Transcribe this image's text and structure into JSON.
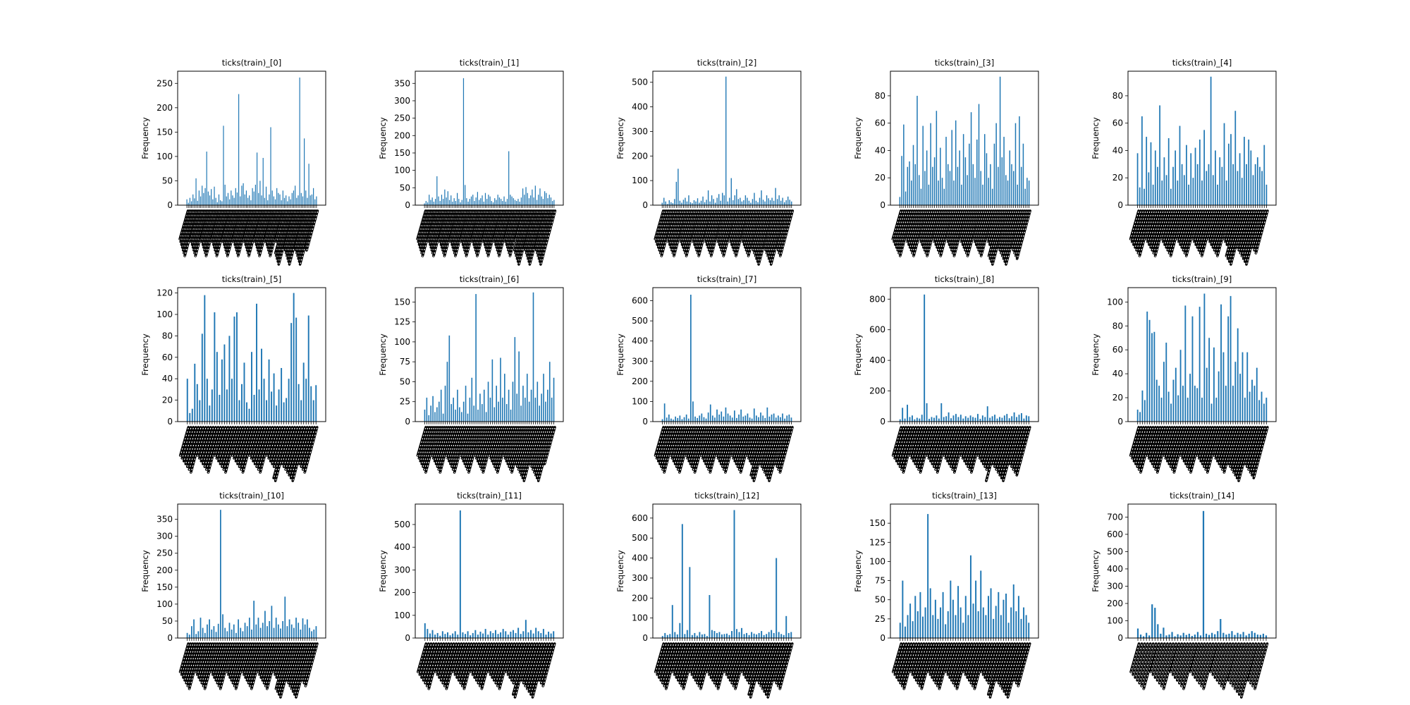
{
  "figure": {
    "background": "#ffffff",
    "bar_color": "#1f77b4"
  },
  "chart_data": [
    {
      "type": "bar",
      "title": "ticks(train)_[0]",
      "ylabel": "Frequency",
      "ylim": [
        0,
        275
      ],
      "yticks": [
        0,
        50,
        100,
        150,
        200,
        250
      ],
      "values": [
        12,
        5,
        15,
        8,
        22,
        14,
        55,
        9,
        30,
        18,
        40,
        25,
        35,
        110,
        28,
        20,
        33,
        12,
        38,
        15,
        6,
        22,
        10,
        8,
        163,
        42,
        18,
        25,
        12,
        30,
        20,
        15,
        35,
        26,
        228,
        18,
        40,
        45,
        22,
        30,
        15,
        20,
        10,
        35,
        28,
        42,
        108,
        25,
        50,
        20,
        97,
        15,
        38,
        10,
        22,
        160,
        30,
        18,
        12,
        35,
        25,
        22,
        10,
        30,
        15,
        20,
        8,
        18,
        12,
        25,
        30,
        40,
        15,
        20,
        262,
        25,
        18,
        137,
        30,
        15,
        85,
        20,
        22,
        35,
        12,
        18
      ]
    },
    {
      "type": "bar",
      "title": "ticks(train)_[1]",
      "ylabel": "Frequency",
      "ylim": [
        0,
        385
      ],
      "yticks": [
        0,
        50,
        100,
        150,
        200,
        250,
        300,
        350
      ],
      "values": [
        5,
        12,
        8,
        30,
        15,
        22,
        10,
        18,
        83,
        25,
        12,
        30,
        18,
        45,
        22,
        40,
        15,
        28,
        10,
        20,
        12,
        35,
        18,
        8,
        15,
        365,
        58,
        20,
        10,
        18,
        25,
        30,
        12,
        22,
        38,
        15,
        20,
        28,
        10,
        35,
        18,
        30,
        25,
        12,
        8,
        20,
        15,
        30,
        22,
        18,
        12,
        25,
        10,
        18,
        155,
        30,
        25,
        20,
        15,
        12,
        18,
        10,
        22,
        48,
        30,
        52,
        35,
        20,
        28,
        45,
        22,
        56,
        15,
        30,
        48,
        25,
        18,
        40,
        35,
        20,
        30,
        22,
        12,
        15
      ]
    },
    {
      "type": "bar",
      "title": "ticks(train)_[2]",
      "ylabel": "Frequency",
      "ylim": [
        0,
        545
      ],
      "yticks": [
        0,
        100,
        200,
        300,
        400,
        500
      ],
      "values": [
        10,
        30,
        15,
        5,
        20,
        12,
        8,
        25,
        95,
        148,
        18,
        10,
        22,
        30,
        15,
        40,
        12,
        8,
        20,
        15,
        28,
        10,
        18,
        35,
        12,
        22,
        60,
        15,
        40,
        25,
        10,
        30,
        45,
        18,
        50,
        40,
        523,
        15,
        30,
        110,
        20,
        40,
        65,
        25,
        30,
        15,
        20,
        40,
        30,
        18,
        10,
        25,
        50,
        18,
        12,
        30,
        60,
        22,
        15,
        40,
        28,
        20,
        30,
        18,
        70,
        25,
        40,
        18,
        30,
        12,
        20,
        35,
        22,
        15
      ]
    },
    {
      "type": "bar",
      "title": "ticks(train)_[3]",
      "ylabel": "Frequency",
      "ylim": [
        0,
        98
      ],
      "yticks": [
        0,
        20,
        40,
        60,
        80
      ],
      "values": [
        6,
        36,
        59,
        10,
        28,
        32,
        18,
        44,
        30,
        80,
        22,
        12,
        58,
        25,
        40,
        15,
        60,
        28,
        35,
        69,
        18,
        42,
        20,
        12,
        50,
        30,
        25,
        55,
        18,
        62,
        28,
        40,
        15,
        52,
        35,
        22,
        45,
        68,
        30,
        20,
        48,
        74,
        25,
        15,
        52,
        38,
        20,
        30,
        12,
        45,
        60,
        28,
        94,
        35,
        50,
        22,
        18,
        40,
        30,
        25,
        60,
        15,
        65,
        28,
        45,
        12,
        20,
        18
      ]
    },
    {
      "type": "bar",
      "title": "ticks(train)_[4]",
      "ylabel": "Frequency",
      "ylim": [
        0,
        98
      ],
      "yticks": [
        0,
        20,
        40,
        60,
        80
      ],
      "values": [
        38,
        13,
        65,
        12,
        50,
        24,
        46,
        15,
        40,
        28,
        73,
        18,
        35,
        22,
        49,
        12,
        28,
        40,
        18,
        58,
        30,
        22,
        44,
        15,
        38,
        20,
        42,
        30,
        48,
        18,
        55,
        25,
        30,
        94,
        22,
        40,
        15,
        35,
        28,
        60,
        18,
        45,
        52,
        30,
        69,
        25,
        38,
        20,
        50,
        30,
        48,
        40,
        22,
        30,
        35,
        28,
        25,
        44,
        15
      ]
    },
    {
      "type": "bar",
      "title": "ticks(train)_[5]",
      "ylabel": "Frequency",
      "ylim": [
        0,
        125
      ],
      "yticks": [
        0,
        20,
        40,
        60,
        80,
        100,
        120
      ],
      "values": [
        40,
        8,
        12,
        54,
        35,
        20,
        82,
        118,
        40,
        15,
        30,
        102,
        65,
        25,
        58,
        72,
        30,
        80,
        40,
        98,
        102,
        20,
        35,
        55,
        18,
        12,
        65,
        25,
        110,
        30,
        68,
        40,
        20,
        58,
        28,
        45,
        15,
        30,
        50,
        18,
        22,
        40,
        92,
        120,
        97,
        35,
        20,
        55,
        40,
        99,
        33,
        20,
        34
      ]
    },
    {
      "type": "bar",
      "title": "ticks(train)_[6]",
      "ylabel": "Frequency",
      "ylim": [
        0,
        168
      ],
      "yticks": [
        0,
        25,
        50,
        75,
        100,
        125,
        150
      ],
      "values": [
        15,
        30,
        8,
        20,
        32,
        12,
        18,
        25,
        40,
        10,
        45,
        75,
        108,
        22,
        30,
        15,
        40,
        18,
        12,
        25,
        45,
        10,
        30,
        55,
        20,
        160,
        15,
        35,
        22,
        40,
        12,
        50,
        30,
        78,
        18,
        45,
        25,
        80,
        30,
        60,
        22,
        40,
        15,
        50,
        106,
        35,
        88,
        20,
        45,
        30,
        60,
        25,
        40,
        162,
        30,
        50,
        20,
        35,
        60,
        25,
        40,
        75,
        30,
        55
      ]
    },
    {
      "type": "bar",
      "title": "ticks(train)_[7]",
      "ylabel": "Frequency",
      "ylim": [
        0,
        665
      ],
      "yticks": [
        0,
        100,
        200,
        300,
        400,
        500,
        600
      ],
      "values": [
        12,
        90,
        20,
        35,
        15,
        10,
        25,
        18,
        30,
        12,
        22,
        35,
        15,
        630,
        100,
        25,
        18,
        30,
        40,
        22,
        15,
        45,
        85,
        30,
        20,
        60,
        35,
        50,
        25,
        70,
        40,
        30,
        20,
        55,
        18,
        35,
        60,
        25,
        30,
        40,
        20,
        15,
        65,
        30,
        22,
        45,
        30,
        18,
        70,
        25,
        35,
        40,
        20,
        30,
        22,
        40,
        15,
        30,
        35,
        20
      ]
    },
    {
      "type": "bar",
      "title": "ticks(train)_[8]",
      "ylabel": "Frequency",
      "ylim": [
        0,
        875
      ],
      "yticks": [
        0,
        200,
        400,
        600,
        800
      ],
      "values": [
        15,
        90,
        20,
        110,
        30,
        40,
        15,
        25,
        20,
        45,
        830,
        120,
        18,
        30,
        25,
        40,
        20,
        120,
        30,
        35,
        60,
        22,
        40,
        50,
        30,
        45,
        20,
        35,
        25,
        40,
        30,
        25,
        50,
        18,
        40,
        30,
        100,
        25,
        35,
        45,
        20,
        30,
        25,
        40,
        50,
        22,
        35,
        60,
        30,
        45,
        55,
        20,
        40,
        35
      ]
    },
    {
      "type": "bar",
      "title": "ticks(train)_[9]",
      "ylabel": "Frequency",
      "ylim": [
        0,
        112
      ],
      "yticks": [
        0,
        20,
        40,
        60,
        80,
        100
      ],
      "values": [
        10,
        8,
        26,
        18,
        92,
        85,
        74,
        75,
        35,
        30,
        20,
        50,
        66,
        25,
        15,
        35,
        45,
        22,
        60,
        30,
        97,
        20,
        40,
        88,
        30,
        28,
        96,
        20,
        107,
        45,
        70,
        15,
        62,
        20,
        42,
        98,
        58,
        30,
        88,
        105,
        30,
        50,
        78,
        40,
        58,
        20,
        58,
        25,
        35,
        30,
        45,
        18,
        25,
        15,
        20
      ]
    },
    {
      "type": "bar",
      "title": "ticks(train)_[10]",
      "ylabel": "Frequency",
      "ylim": [
        0,
        395
      ],
      "yticks": [
        0,
        50,
        100,
        150,
        200,
        250,
        300,
        350
      ],
      "values": [
        15,
        10,
        35,
        55,
        12,
        20,
        60,
        30,
        15,
        40,
        55,
        25,
        35,
        18,
        42,
        378,
        70,
        30,
        20,
        45,
        25,
        40,
        15,
        55,
        30,
        20,
        45,
        35,
        60,
        25,
        110,
        40,
        60,
        30,
        45,
        80,
        35,
        50,
        95,
        30,
        60,
        40,
        28,
        50,
        122,
        35,
        55,
        40,
        30,
        60,
        45,
        25,
        58,
        40,
        55,
        30,
        20,
        25,
        35
      ]
    },
    {
      "type": "bar",
      "title": "ticks(train)_[11]",
      "ylabel": "Frequency",
      "ylim": [
        0,
        590
      ],
      "yticks": [
        0,
        100,
        200,
        300,
        400,
        500
      ],
      "values": [
        65,
        40,
        20,
        35,
        15,
        22,
        10,
        30,
        18,
        25,
        12,
        20,
        30,
        15,
        562,
        25,
        18,
        30,
        12,
        22,
        35,
        15,
        28,
        20,
        40,
        15,
        30,
        22,
        35,
        18,
        25,
        40,
        30,
        15,
        28,
        35,
        22,
        45,
        18,
        30,
        80,
        25,
        35,
        20,
        45,
        30,
        22,
        40,
        15,
        28,
        20,
        30
      ]
    },
    {
      "type": "bar",
      "title": "ticks(train)_[12]",
      "ylabel": "Frequency",
      "ylim": [
        0,
        670
      ],
      "yticks": [
        0,
        100,
        200,
        300,
        400,
        500,
        600
      ],
      "values": [
        10,
        25,
        15,
        20,
        165,
        30,
        18,
        75,
        570,
        20,
        40,
        355,
        15,
        25,
        12,
        30,
        18,
        20,
        10,
        215,
        40,
        35,
        25,
        30,
        18,
        20,
        22,
        15,
        35,
        640,
        45,
        30,
        50,
        20,
        25,
        15,
        30,
        22,
        18,
        25,
        35,
        15,
        20,
        30,
        40,
        25,
        400,
        30,
        20,
        15,
        110,
        25,
        30
      ]
    },
    {
      "type": "bar",
      "title": "ticks(train)_[13]",
      "ylabel": "Frequency",
      "ylim": [
        0,
        175
      ],
      "yticks": [
        0,
        25,
        50,
        75,
        100,
        125,
        150
      ],
      "values": [
        20,
        75,
        15,
        30,
        45,
        22,
        55,
        35,
        60,
        28,
        40,
        162,
        65,
        30,
        50,
        25,
        40,
        60,
        18,
        35,
        75,
        50,
        30,
        68,
        40,
        20,
        55,
        30,
        108,
        45,
        75,
        35,
        88,
        40,
        30,
        55,
        65,
        25,
        42,
        60,
        30,
        50,
        58,
        20,
        40,
        70,
        35,
        55,
        25,
        40,
        30,
        20
      ]
    },
    {
      "type": "bar",
      "title": "ticks(train)_[14]",
      "ylabel": "Frequency",
      "ylim": [
        0,
        775
      ],
      "yticks": [
        0,
        100,
        200,
        300,
        400,
        500,
        600,
        700
      ],
      "values": [
        55,
        20,
        10,
        30,
        15,
        195,
        175,
        80,
        25,
        60,
        15,
        20,
        35,
        10,
        22,
        15,
        30,
        18,
        25,
        12,
        20,
        35,
        15,
        735,
        25,
        18,
        30,
        22,
        40,
        110,
        30,
        20,
        25,
        40,
        18,
        30,
        22,
        35,
        15,
        25,
        40,
        30,
        20,
        18,
        25,
        15
      ]
    }
  ]
}
